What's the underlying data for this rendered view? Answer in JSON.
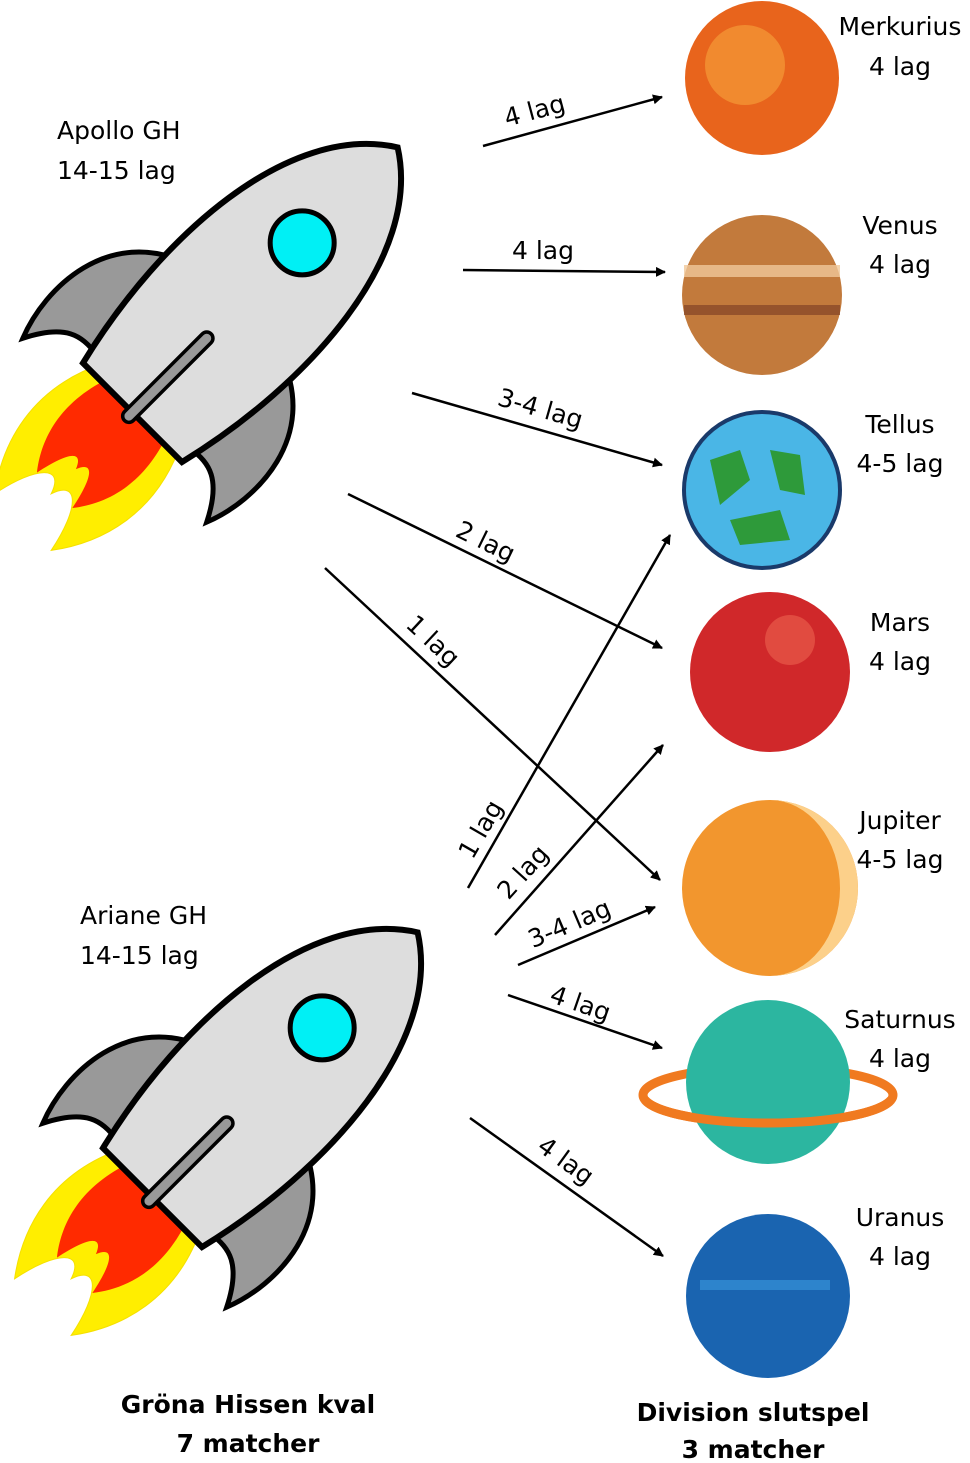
{
  "sources": [
    {
      "name": "Apollo GH",
      "teams": "14-15 lag"
    },
    {
      "name": "Ariane GH",
      "teams": "14-15 lag"
    }
  ],
  "targets": [
    {
      "name": "Merkurius",
      "teams": "4 lag"
    },
    {
      "name": "Venus",
      "teams": "4 lag"
    },
    {
      "name": "Tellus",
      "teams": "4-5 lag"
    },
    {
      "name": "Mars",
      "teams": "4 lag"
    },
    {
      "name": "Jupiter",
      "teams": "4-5 lag"
    },
    {
      "name": "Saturnus",
      "teams": "4 lag"
    },
    {
      "name": "Uranus",
      "teams": "4 lag"
    }
  ],
  "edges": [
    {
      "label": "4 lag"
    },
    {
      "label": "4 lag"
    },
    {
      "label": "3-4 lag"
    },
    {
      "label": "2 lag"
    },
    {
      "label": "1 lag"
    },
    {
      "label": "1 lag"
    },
    {
      "label": "2 lag"
    },
    {
      "label": "3-4 lag"
    },
    {
      "label": "4 lag"
    },
    {
      "label": "4 lag"
    }
  ],
  "footer": {
    "left": {
      "title": "Gröna Hissen kval",
      "subtitle": "7 matcher"
    },
    "right": {
      "title": "Division slutspel",
      "subtitle": "3 matcher"
    }
  }
}
